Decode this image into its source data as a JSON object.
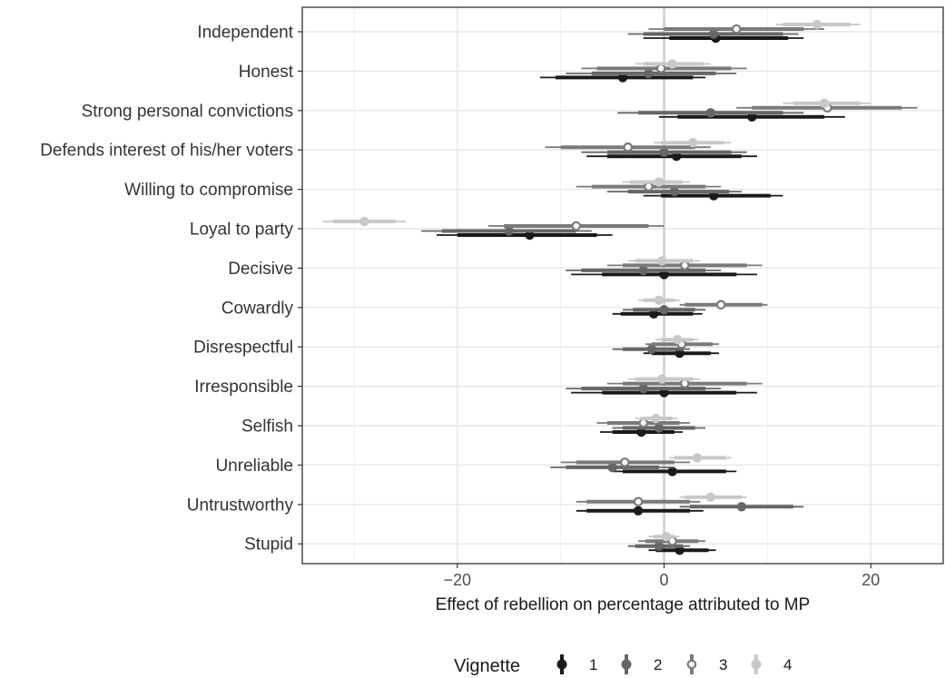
{
  "chart_data": {
    "type": "scatter",
    "subtype": "coefficient-plot",
    "xlabel": "Effect of rebellion on percentage attributed to MP",
    "xlim": [
      -35,
      27
    ],
    "xticks": [
      -20,
      0,
      20
    ],
    "xtick_labels": [
      "−20",
      "0",
      "20"
    ],
    "grid": true,
    "reference_line_x": 0,
    "legend": {
      "title": "Vignette",
      "position": "bottom",
      "entries": [
        "1",
        "2",
        "3",
        "4"
      ]
    },
    "categories": [
      "Independent",
      "Honest",
      "Strong personal convictions",
      "Defends interest of his/her voters",
      "Willing to compromise",
      "Loyal to party",
      "Decisive",
      "Cowardly",
      "Disrespectful",
      "Irresponsible",
      "Selfish",
      "Unreliable",
      "Untrustworthy",
      "Stupid"
    ],
    "series": [
      {
        "name": "1",
        "color": "#1a1a1a",
        "marker": "filled",
        "values": [
          {
            "est": 5.0,
            "lo95": -2.0,
            "hi95": 13.5,
            "lo68": 0.5,
            "hi68": 12.0
          },
          {
            "est": -4.0,
            "lo95": -12.0,
            "hi95": 4.0,
            "lo68": -10.5,
            "hi68": 2.8
          },
          {
            "est": 8.5,
            "lo95": -0.5,
            "hi95": 17.5,
            "lo68": 1.3,
            "hi68": 15.5
          },
          {
            "est": 1.2,
            "lo95": -7.5,
            "hi95": 9.0,
            "lo68": -5.5,
            "hi68": 7.5
          },
          {
            "est": 4.8,
            "lo95": -2.0,
            "hi95": 11.5,
            "lo68": -0.3,
            "hi68": 10.3
          },
          {
            "est": -13.0,
            "lo95": -22.0,
            "hi95": -5.0,
            "lo68": -20.0,
            "hi68": -6.5
          },
          {
            "est": 0.0,
            "lo95": -9.0,
            "hi95": 9.0,
            "lo68": -6.0,
            "hi68": 7.0
          },
          {
            "est": -1.0,
            "lo95": -5.0,
            "hi95": 3.7,
            "lo68": -4.2,
            "hi68": 2.8
          },
          {
            "est": 1.5,
            "lo95": -2.0,
            "hi95": 5.3,
            "lo68": -1.2,
            "hi68": 4.5
          },
          {
            "est": 0.0,
            "lo95": -9.0,
            "hi95": 9.0,
            "lo68": -6.0,
            "hi68": 7.0
          },
          {
            "est": -2.2,
            "lo95": -6.2,
            "hi95": 1.8,
            "lo68": -5.0,
            "hi68": 1.0
          },
          {
            "est": 0.8,
            "lo95": -5.0,
            "hi95": 7.0,
            "lo68": -4.0,
            "hi68": 6.0
          },
          {
            "est": -2.5,
            "lo95": -8.5,
            "hi95": 3.8,
            "lo68": -7.5,
            "hi68": 2.5
          },
          {
            "est": 1.5,
            "lo95": -1.5,
            "hi95": 5.0,
            "lo68": -0.8,
            "hi68": 4.3
          }
        ]
      },
      {
        "name": "2",
        "color": "#666666",
        "marker": "filled",
        "values": [
          {
            "est": 4.8,
            "lo95": -3.5,
            "hi95": 13.0,
            "lo68": -2.0,
            "hi68": 11.5
          },
          {
            "est": -1.5,
            "lo95": -9.5,
            "hi95": 7.0,
            "lo68": -7.0,
            "hi68": 5.0
          },
          {
            "est": 4.5,
            "lo95": -4.5,
            "hi95": 13.5,
            "lo68": -2.5,
            "hi68": 11.5
          },
          {
            "est": 0.0,
            "lo95": -8.0,
            "hi95": 8.0,
            "lo68": -5.5,
            "hi68": 6.5
          },
          {
            "est": 1.0,
            "lo95": -5.5,
            "hi95": 7.5,
            "lo68": -3.5,
            "hi68": 6.3
          },
          {
            "est": -15.0,
            "lo95": -23.5,
            "hi95": -7.0,
            "lo68": -21.5,
            "hi68": -8.5
          },
          {
            "est": -2.0,
            "lo95": -9.5,
            "hi95": 5.5,
            "lo68": -8.0,
            "hi68": 4.0
          },
          {
            "est": 0.0,
            "lo95": -4.0,
            "hi95": 4.0,
            "lo68": -3.0,
            "hi68": 3.0
          },
          {
            "est": -1.2,
            "lo95": -5.0,
            "hi95": 2.5,
            "lo68": -4.0,
            "hi68": 1.8
          },
          {
            "est": -2.0,
            "lo95": -9.5,
            "hi95": 5.5,
            "lo68": -8.0,
            "hi68": 4.0
          },
          {
            "est": -0.5,
            "lo95": -5.0,
            "hi95": 4.0,
            "lo68": -4.0,
            "hi68": 3.0
          },
          {
            "est": -5.0,
            "lo95": -11.0,
            "hi95": 1.0,
            "lo68": -9.5,
            "hi68": -0.5
          },
          {
            "est": 7.5,
            "lo95": 1.5,
            "hi95": 13.5,
            "lo68": 2.5,
            "hi68": 12.5
          },
          {
            "est": -0.5,
            "lo95": -3.5,
            "hi95": 2.5,
            "lo68": -2.8,
            "hi68": 1.8
          }
        ]
      },
      {
        "name": "3",
        "color": "#7a7a7a",
        "marker": "hollow",
        "values": [
          {
            "est": 7.0,
            "lo95": -1.5,
            "hi95": 15.5,
            "lo68": 0.0,
            "hi68": 13.5
          },
          {
            "est": -0.3,
            "lo95": -8.0,
            "hi95": 8.0,
            "lo68": -6.5,
            "hi68": 6.5
          },
          {
            "est": 15.8,
            "lo95": 7.0,
            "hi95": 24.5,
            "lo68": 8.5,
            "hi68": 23.0
          },
          {
            "est": -3.5,
            "lo95": -11.5,
            "hi95": 4.5,
            "lo68": -10.0,
            "hi68": 3.0
          },
          {
            "est": -1.5,
            "lo95": -8.5,
            "hi95": 5.5,
            "lo68": -7.0,
            "hi68": 4.0
          },
          {
            "est": -8.5,
            "lo95": -17.0,
            "hi95": 0.0,
            "lo68": -15.5,
            "hi68": -1.5
          },
          {
            "est": 2.0,
            "lo95": -5.5,
            "hi95": 9.5,
            "lo68": -4.0,
            "hi68": 8.0
          },
          {
            "est": 5.5,
            "lo95": 1.5,
            "hi95": 10.0,
            "lo68": 2.0,
            "hi68": 9.5
          },
          {
            "est": 1.7,
            "lo95": -1.8,
            "hi95": 5.3,
            "lo68": -1.2,
            "hi68": 4.7
          },
          {
            "est": 2.0,
            "lo95": -5.5,
            "hi95": 9.5,
            "lo68": -4.0,
            "hi68": 8.0
          },
          {
            "est": -2.0,
            "lo95": -6.5,
            "hi95": 2.5,
            "lo68": -5.5,
            "hi68": 1.5
          },
          {
            "est": -3.8,
            "lo95": -10.0,
            "hi95": 2.5,
            "lo68": -8.5,
            "hi68": 1.0
          },
          {
            "est": -2.5,
            "lo95": -8.5,
            "hi95": 3.5,
            "lo68": -7.5,
            "hi68": 2.5
          },
          {
            "est": 0.8,
            "lo95": -2.5,
            "hi95": 4.0,
            "lo68": -1.8,
            "hi68": 3.3
          }
        ]
      },
      {
        "name": "4",
        "color": "#c8c8c8",
        "marker": "filled",
        "values": [
          {
            "est": 14.8,
            "lo95": 10.8,
            "hi95": 19.0,
            "lo68": 11.5,
            "hi68": 18.0
          },
          {
            "est": 0.8,
            "lo95": -2.8,
            "hi95": 4.5,
            "lo68": -2.0,
            "hi68": 3.8
          },
          {
            "est": 15.5,
            "lo95": 11.5,
            "hi95": 20.0,
            "lo68": 12.5,
            "hi68": 19.0
          },
          {
            "est": 2.8,
            "lo95": -1.0,
            "hi95": 6.5,
            "lo68": -0.3,
            "hi68": 5.8
          },
          {
            "est": -0.5,
            "lo95": -4.0,
            "hi95": 2.5,
            "lo68": -3.3,
            "hi68": 1.8
          },
          {
            "est": -29.0,
            "lo95": -33.0,
            "hi95": -25.0,
            "lo68": -32.0,
            "hi68": -26.0
          },
          {
            "est": -0.2,
            "lo95": -3.5,
            "hi95": 3.5,
            "lo68": -2.8,
            "hi68": 2.8
          },
          {
            "est": -0.5,
            "lo95": -2.5,
            "hi95": 1.5,
            "lo68": -2.0,
            "hi68": 1.0
          },
          {
            "est": 1.3,
            "lo95": -0.8,
            "hi95": 3.3,
            "lo68": -0.3,
            "hi68": 2.8
          },
          {
            "est": -0.2,
            "lo95": -3.5,
            "hi95": 3.5,
            "lo68": -2.8,
            "hi68": 2.8
          },
          {
            "est": -0.8,
            "lo95": -2.8,
            "hi95": 1.3,
            "lo68": -2.3,
            "hi68": 0.8
          },
          {
            "est": 3.2,
            "lo95": 0.5,
            "hi95": 6.5,
            "lo68": 1.0,
            "hi68": 6.0
          },
          {
            "est": 4.5,
            "lo95": 1.5,
            "hi95": 8.0,
            "lo68": 2.0,
            "hi68": 7.5
          },
          {
            "est": 0.2,
            "lo95": -1.5,
            "hi95": 1.5,
            "lo68": -1.0,
            "hi68": 1.0
          }
        ]
      }
    ]
  }
}
